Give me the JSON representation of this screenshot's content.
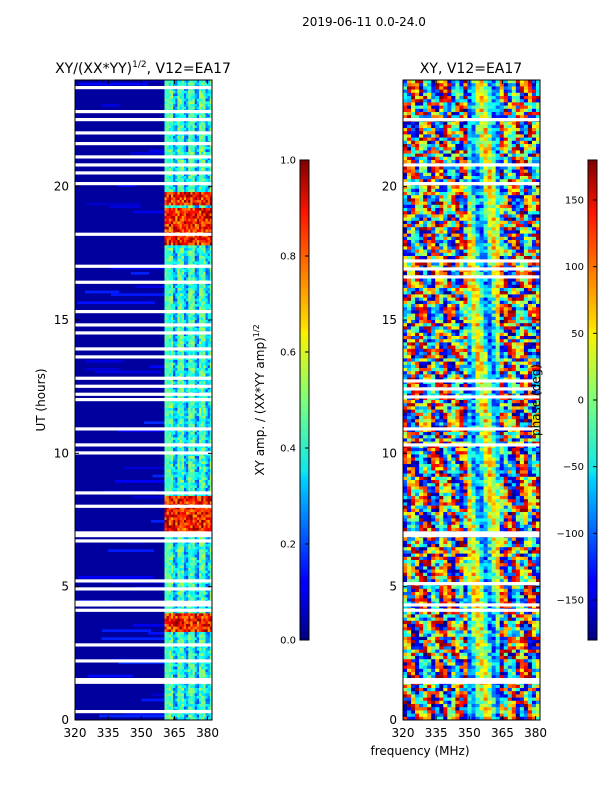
{
  "figure": {
    "suptitle": "2019-06-11 0.0-24.0",
    "xlabel_shared": "frequency (MHz)"
  },
  "chart_data": [
    {
      "type": "heatmap",
      "title_main": "XY/(XX*YY)",
      "title_sup": "1/2",
      "title_tail": ", V12=EA17",
      "xlabel": "",
      "ylabel": "UT (hours)",
      "xlim": [
        320,
        382
      ],
      "ylim": [
        0,
        24
      ],
      "xticks": [
        320,
        335,
        350,
        365,
        380
      ],
      "yticks": [
        0,
        5,
        10,
        15,
        20
      ],
      "colorbar": {
        "label": "XY amp. / (XX*YY amp)",
        "label_sup": "1/2",
        "ticks": [
          "0.0",
          "0.2",
          "0.4",
          "0.6",
          "0.8",
          "1.0"
        ],
        "tick_values": [
          0.0,
          0.2,
          0.4,
          0.6,
          0.8,
          1.0
        ],
        "range": [
          0.0,
          1.0
        ],
        "colormap": "jet"
      },
      "bright_band_mhz": [
        360.5,
        382
      ],
      "hot_spots_ut": [
        [
          3.3,
          4.0
        ],
        [
          7.0,
          8.4
        ],
        [
          17.8,
          19.2
        ],
        [
          19.3,
          19.8
        ]
      ],
      "gap_rows_ut": [
        0.3,
        1.4,
        1.5,
        2.2,
        2.8,
        4.1,
        4.3,
        4.4,
        4.9,
        5.2,
        6.7,
        6.9,
        7.0,
        8.0,
        8.5,
        10.0,
        10.3,
        10.9,
        12.0,
        12.2,
        12.5,
        12.8,
        13.6,
        13.9,
        14.5,
        14.8,
        15.3,
        16.4,
        17.0,
        18.2,
        20.1,
        20.5,
        20.8,
        21.1,
        21.6,
        22.0,
        22.5,
        22.8,
        23.7
      ]
    },
    {
      "type": "heatmap",
      "title_main": "XY, V12=EA17",
      "xlabel": "frequency (MHz)",
      "ylabel": "",
      "xlim": [
        320,
        382
      ],
      "ylim": [
        0,
        24
      ],
      "xticks": [
        320,
        335,
        350,
        365,
        380
      ],
      "yticks": [
        0,
        5,
        10,
        15,
        20
      ],
      "colorbar": {
        "label": "phase (deg)",
        "ticks": [
          "−150",
          "−100",
          "−50",
          "0",
          "50",
          "100",
          "150"
        ],
        "tick_values": [
          -150,
          -100,
          -50,
          0,
          50,
          100,
          150
        ],
        "range": [
          -180,
          180
        ],
        "colormap": "jet"
      },
      "gap_rows_ut": [
        1.4,
        1.5,
        4.1,
        4.3,
        5.1,
        6.9,
        7.0,
        10.3,
        10.9,
        12.1,
        12.4,
        12.7,
        16.6,
        16.9,
        17.2,
        20.1,
        20.8,
        22.5
      ]
    }
  ]
}
